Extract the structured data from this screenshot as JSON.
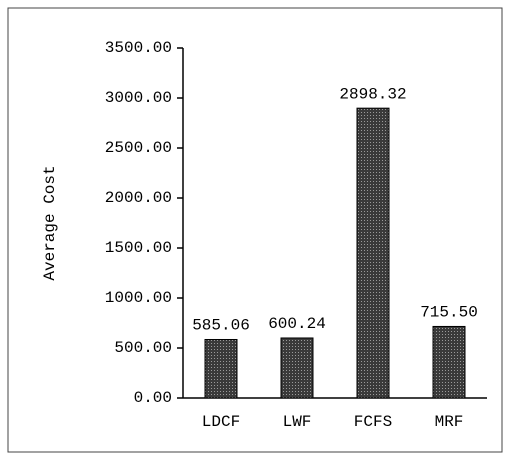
{
  "chart_data": {
    "type": "bar",
    "y_label": "Average Cost",
    "categories": [
      "LDCF",
      "LWF",
      "FCFS",
      "MRF"
    ],
    "values": [
      585.06,
      600.24,
      2898.32,
      715.5
    ],
    "value_labels": [
      "585.06",
      "600.24",
      "2898.32",
      "715.50"
    ],
    "color": "#4a4a4a",
    "ylim": [
      0,
      3500
    ],
    "yticks": [
      {
        "value": 0,
        "label": "0.00"
      },
      {
        "value": 500,
        "label": "500.00"
      },
      {
        "value": 1000,
        "label": "1000.00"
      },
      {
        "value": 1500,
        "label": "1500.00"
      },
      {
        "value": 2000,
        "label": "2000.00"
      },
      {
        "value": 2500,
        "label": "2500.00"
      },
      {
        "value": 3000,
        "label": "3000.00"
      },
      {
        "value": 3500,
        "label": "3500.00"
      }
    ]
  }
}
